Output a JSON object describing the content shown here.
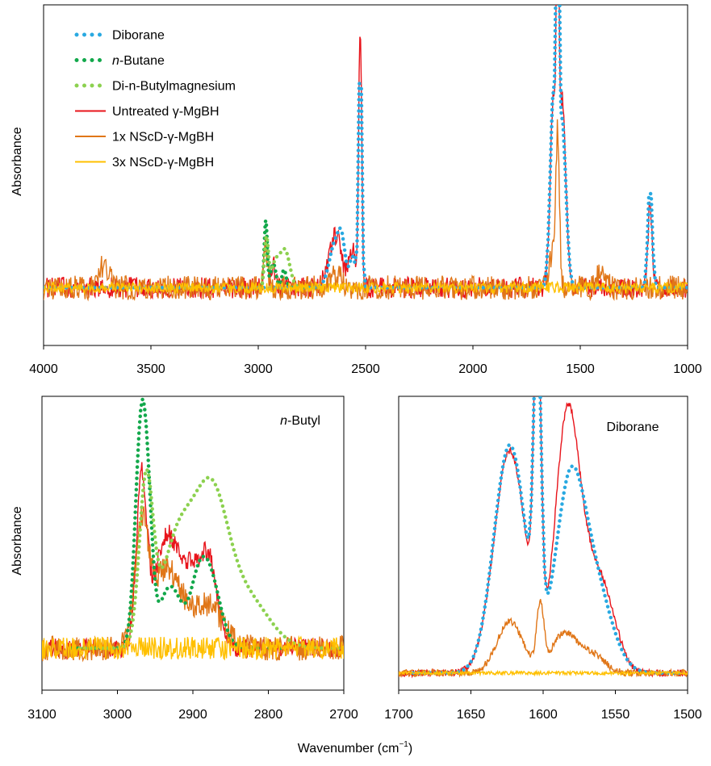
{
  "figure": {
    "shared_xlabel": "Wavenumber (cm",
    "shared_xlabel_sup": "−1",
    "shared_xlabel_end": ")"
  },
  "colors": {
    "diborane": "#29a9e1",
    "butane": "#12a84b",
    "dibutylmg": "#8cd14f",
    "untreated": "#e8141b",
    "nscd1": "#e07618",
    "nscd3": "#ffc000"
  },
  "chart_data": [
    {
      "id": "overview",
      "type": "line",
      "title": "",
      "xlabel": "",
      "ylabel": "Absorbance",
      "xlim": [
        4000,
        1000
      ],
      "x_reversed": true,
      "ylim": [
        -0.12,
        1.0
      ],
      "ytick_labels": false,
      "xticks": [
        4000,
        3500,
        3000,
        2500,
        2000,
        1500,
        1000
      ],
      "xtick_labels": [
        "4000",
        "3500",
        "3000",
        "2500",
        "2000",
        "1500",
        "1000"
      ],
      "legend": [
        {
          "key": "diborane",
          "label": "Diborane",
          "style": "dotted",
          "italic": ""
        },
        {
          "key": "butane",
          "label": "-Butane",
          "style": "dotted",
          "italic": "n"
        },
        {
          "key": "dibutylmg",
          "label": "Di-n-Butylmagnesium",
          "style": "dotted",
          "italic": ""
        },
        {
          "key": "untreated",
          "label": "Untreated γ-MgBH",
          "style": "solid",
          "italic": ""
        },
        {
          "key": "nscd1",
          "label": "1x NScD-γ-MgBH",
          "style": "solid",
          "italic": ""
        },
        {
          "key": "nscd3",
          "label": "3x NScD-γ-MgBH",
          "style": "solid",
          "italic": ""
        }
      ],
      "legend_position": "top-left",
      "series": [
        {
          "key": "diborane",
          "name": "Diborane",
          "baseline": 0.07,
          "peaks": [
            [
              2640,
              0.15,
              28
            ],
            [
              2610,
              0.1,
              15
            ],
            [
              2560,
              0.1,
              15
            ],
            [
              2525,
              0.85,
              7
            ],
            [
              1625,
              0.62,
              15
            ],
            [
              1605,
              1.0,
              5
            ],
            [
              1585,
              0.55,
              18
            ],
            [
              1175,
              0.35,
              10
            ]
          ]
        },
        {
          "key": "butane",
          "name": "n-Butane",
          "baseline": 0.07,
          "x_range": [
            3020,
            2780
          ],
          "peaks": [
            [
              2965,
              0.22,
              7
            ],
            [
              2930,
              0.08,
              12
            ],
            [
              2880,
              0.06,
              10
            ]
          ]
        },
        {
          "key": "dibutylmg",
          "name": "Di-n-Butylmagnesium",
          "baseline": 0.07,
          "x_range": [
            3020,
            2700
          ],
          "peaks": [
            [
              2962,
              0.16,
              9
            ],
            [
              2920,
              0.08,
              20
            ],
            [
              2875,
              0.12,
              22
            ]
          ]
        },
        {
          "key": "untreated",
          "name": "Untreated γ-MgBH",
          "baseline": 0.07,
          "noise": 0.035,
          "peaks": [
            [
              2965,
              0.16,
              8
            ],
            [
              2930,
              0.07,
              12
            ],
            [
              2640,
              0.17,
              30
            ],
            [
              2525,
              0.85,
              7
            ],
            [
              2560,
              0.12,
              15
            ],
            [
              1625,
              0.6,
              15
            ],
            [
              1605,
              1.0,
              5
            ],
            [
              1585,
              0.6,
              18
            ],
            [
              1175,
              0.26,
              10
            ]
          ]
        },
        {
          "key": "nscd1",
          "name": "1x NScD-γ-MgBH",
          "baseline": 0.07,
          "noise": 0.04,
          "peaks": [
            [
              3720,
              0.07,
              25
            ],
            [
              2965,
              0.12,
              8
            ],
            [
              2640,
              0.04,
              30
            ],
            [
              1605,
              0.45,
              8
            ],
            [
              1625,
              0.12,
              20
            ],
            [
              1400,
              0.06,
              20
            ]
          ]
        },
        {
          "key": "nscd3",
          "name": "3x NScD-γ-MgBH",
          "baseline": 0.07,
          "noise": 0.018,
          "peaks": []
        }
      ]
    },
    {
      "id": "n-butyl",
      "type": "line",
      "title": "-Butyl",
      "title_italic": "n",
      "xlabel": "",
      "ylabel": "Absorbance",
      "xlim": [
        3100,
        2700
      ],
      "x_reversed": true,
      "ylim": [
        -0.05,
        1.0
      ],
      "ytick_labels": false,
      "xticks": [
        3100,
        3000,
        2900,
        2800,
        2700
      ],
      "xtick_labels": [
        "3100",
        "3000",
        "2900",
        "2800",
        "2700"
      ],
      "series": [
        {
          "key": "diborane",
          "name": "Diborane",
          "hidden": true,
          "baseline": 0.1,
          "peaks": []
        },
        {
          "key": "butane",
          "name": "n-Butane",
          "baseline": 0.1,
          "x_range": [
            3060,
            2780
          ],
          "peaks": [
            [
              2968,
              0.82,
              8
            ],
            [
              2958,
              0.2,
              6
            ],
            [
              2930,
              0.22,
              15
            ],
            [
              2880,
              0.28,
              15
            ],
            [
              2895,
              0.1,
              10
            ]
          ]
        },
        {
          "key": "dibutylmg",
          "name": "Di-n-Butylmagnesium",
          "baseline": 0.1,
          "x_range": [
            3050,
            2700
          ],
          "peaks": [
            [
              2962,
              0.58,
              9
            ],
            [
              2920,
              0.38,
              22
            ],
            [
              2876,
              0.5,
              22
            ],
            [
              2830,
              0.18,
              30
            ]
          ]
        },
        {
          "key": "untreated",
          "name": "Untreated γ-MgBH",
          "baseline": 0.1,
          "noise": 0.035,
          "peaks": [
            [
              2968,
              0.6,
              7
            ],
            [
              2935,
              0.4,
              15
            ],
            [
              2905,
              0.22,
              12
            ],
            [
              2880,
              0.32,
              12
            ]
          ]
        },
        {
          "key": "nscd1",
          "name": "1x NScD-γ-MgBH",
          "baseline": 0.1,
          "noise": 0.045,
          "peaks": [
            [
              2968,
              0.4,
              9
            ],
            [
              2935,
              0.28,
              20
            ],
            [
              2880,
              0.15,
              20
            ]
          ]
        },
        {
          "key": "nscd3",
          "name": "3x NScD-γ-MgBH",
          "baseline": 0.1,
          "noise": 0.04,
          "peaks": []
        }
      ]
    },
    {
      "id": "diborane",
      "type": "line",
      "title": "Diborane",
      "title_italic": "",
      "xlabel": "",
      "ylabel": "",
      "xlim": [
        1700,
        1500
      ],
      "x_reversed": true,
      "ylim": [
        -0.03,
        1.0
      ],
      "ytick_labels": false,
      "xticks": [
        1700,
        1650,
        1600,
        1550,
        1500
      ],
      "xtick_labels": [
        "1700",
        "1650",
        "1600",
        "1550",
        "1500"
      ],
      "series": [
        {
          "key": "diborane",
          "name": "Diborane",
          "baseline": 0.03,
          "x_range": [
            1690,
            1505
          ],
          "peaks": [
            [
              1623,
              0.8,
              11
            ],
            [
              1604,
              1.05,
              2.5
            ],
            [
              1582,
              0.6,
              10
            ],
            [
              1565,
              0.3,
              12
            ]
          ]
        },
        {
          "key": "butane",
          "name": "n-Butane",
          "hidden": true,
          "baseline": 0.03,
          "peaks": []
        },
        {
          "key": "dibutylmg",
          "name": "Di-n-Butylmagnesium",
          "hidden": true,
          "baseline": 0.03,
          "peaks": []
        },
        {
          "key": "untreated",
          "name": "Untreated γ-MgBH",
          "baseline": 0.03,
          "noise": 0.012,
          "peaks": [
            [
              1623,
              0.78,
              11
            ],
            [
              1604,
              1.1,
              2.5
            ],
            [
              1584,
              0.75,
              8
            ],
            [
              1570,
              0.35,
              12
            ],
            [
              1555,
              0.12,
              8
            ]
          ]
        },
        {
          "key": "nscd1",
          "name": "1x NScD-γ-MgBH",
          "baseline": 0.03,
          "noise": 0.012,
          "peaks": [
            [
              1623,
              0.18,
              9
            ],
            [
              1602,
              0.22,
              2.5
            ],
            [
              1585,
              0.14,
              9
            ],
            [
              1565,
              0.06,
              8
            ]
          ]
        },
        {
          "key": "nscd3",
          "name": "3x NScD-γ-MgBH",
          "baseline": 0.03,
          "noise": 0.006,
          "peaks": []
        }
      ]
    }
  ]
}
